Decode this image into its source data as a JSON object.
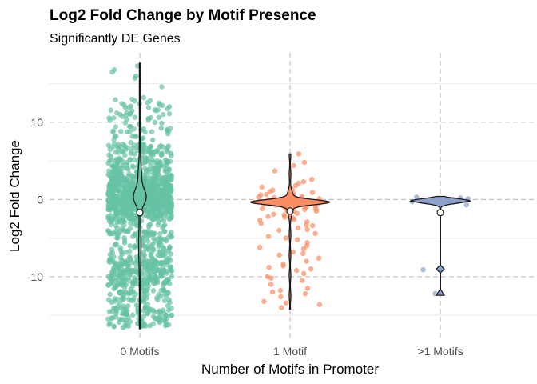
{
  "chart_data": {
    "type": "scatter",
    "title": "Log2 Fold Change by Motif Presence",
    "subtitle": "Significantly DE Genes",
    "xlabel": "Number of Motifs in Promoter",
    "ylabel": "Log2 Fold Change",
    "categories": [
      "0 Motifs",
      "1 Motif",
      ">1 Motifs"
    ],
    "ylim": [
      -18.2,
      19.0
    ],
    "yticks": [
      -10,
      0,
      10
    ],
    "ytick_labels": [
      "-10",
      "0",
      "10"
    ],
    "grid": true,
    "legend": "none",
    "colors": {
      "0 Motifs": "#66c2a5",
      "1 Motif": "#fc8d62",
      ">1 Motifs": "#8da0cb"
    },
    "groups": [
      {
        "category": "0 Motifs",
        "n_points": 1500,
        "y_range": [
          -16.7,
          17.6
        ],
        "median": -1.7,
        "outlier_points": [
          -9.2
        ],
        "extra_points": [
          16.8,
          16.5,
          17.3,
          16.0,
          15.7,
          14.6,
          13.2,
          12.8,
          12.4,
          12.1,
          11.6,
          11.0,
          -15.4,
          -15.9,
          -16.3,
          -16.6,
          -14.8
        ]
      },
      {
        "category": "1 Motif",
        "n_points": 130,
        "y_range": [
          -14.2,
          5.9
        ],
        "median": -1.5,
        "points": [
          5.9,
          4.8,
          4.4,
          3.7,
          2.6,
          2.3,
          2.1,
          1.8,
          1.6,
          1.3,
          1.0,
          0.8,
          0.6,
          0.5,
          0.4,
          0.3,
          0.2,
          0.1,
          0.0,
          -0.1,
          -0.2,
          -0.3,
          -0.4,
          -0.5,
          -0.6,
          -0.7,
          -0.8,
          -0.9,
          -1.0,
          -1.1,
          -1.2,
          -1.3,
          -1.5,
          -1.6,
          -1.8,
          -2.0,
          -2.2,
          -2.4,
          -2.6,
          -2.9,
          -3.1,
          -3.4,
          -3.7,
          -4.0,
          -4.4,
          -4.8,
          -5.2,
          -5.6,
          -6.0,
          -6.4,
          -6.8,
          -7.2,
          -7.6,
          -8.0,
          -8.4,
          -8.8,
          -9.2,
          -9.6,
          -10.0,
          -10.5,
          -11.0,
          -11.5,
          -12.0,
          -12.6,
          -13.2,
          -13.6,
          -14.0,
          0.15,
          -0.25,
          -0.55,
          0.35,
          -0.05,
          -0.75,
          -1.25,
          0.65,
          -0.45,
          0.05,
          -0.35,
          -0.95,
          -1.45,
          -2.7,
          -3.3,
          -5.0,
          -7.0,
          -8.6,
          -10.2,
          -11.8,
          -12.2,
          -1.9,
          -2.3,
          -0.15,
          0.25,
          -0.65,
          -1.05,
          1.2,
          0.9,
          -3.9,
          -6.2,
          -9.0,
          -13.4
        ],
        "violin_tail_bottom": -14.2
      },
      {
        "category": ">1 Motifs",
        "y_range": [
          -12.2,
          0.3
        ],
        "median": -1.7,
        "points": [
          0.3,
          0.2,
          0.1,
          0.0,
          -0.1,
          -0.3,
          -0.5,
          -0.7,
          -0.4,
          -0.2,
          0.1,
          -9.1,
          -12.2
        ],
        "mean": -9.0,
        "lower_marker": -12.1
      }
    ]
  }
}
